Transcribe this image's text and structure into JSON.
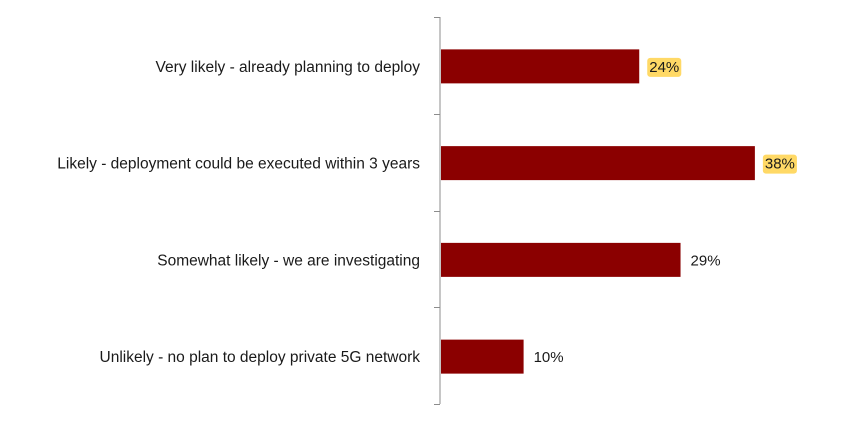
{
  "chart_data": {
    "type": "bar",
    "orientation": "horizontal",
    "title": "",
    "xlabel": "",
    "ylabel": "",
    "categories": [
      "Very likely - already planning to deploy",
      "Likely -  deployment could be executed within 3 years",
      "Somewhat likely - we are investigating",
      "Unlikely - no plan to deploy private 5G network"
    ],
    "values": [
      24,
      38,
      29,
      10
    ],
    "data_labels": [
      "24%",
      "38%",
      "29%",
      "10%"
    ],
    "highlighted": [
      true,
      true,
      false,
      false
    ],
    "xlim": [
      0,
      50
    ],
    "grid": false,
    "legend": "none",
    "colors": {
      "bar": "#8b0000",
      "highlight": "#ffd966",
      "axis": "#8c8c8c",
      "text": "#1a1a1a"
    }
  }
}
